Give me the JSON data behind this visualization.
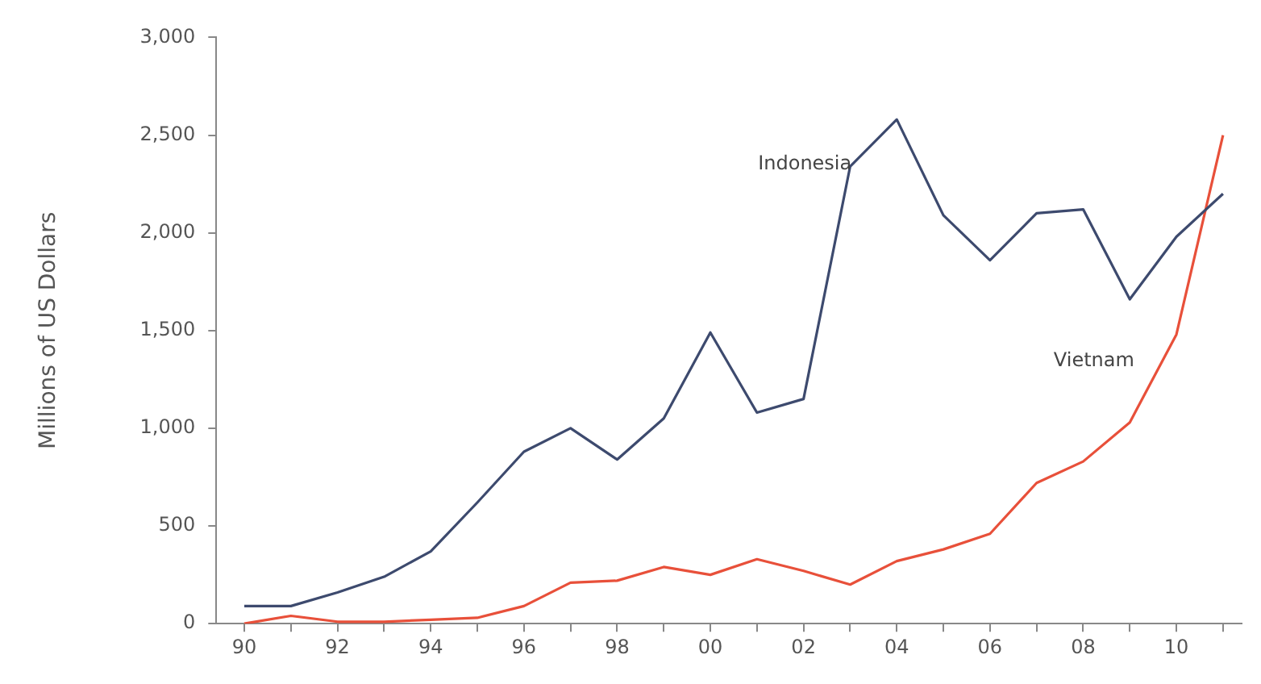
{
  "chart_data": {
    "type": "line",
    "ylabel": "Millions of US Dollars",
    "x": [
      1990,
      1991,
      1992,
      1993,
      1994,
      1995,
      1996,
      1997,
      1998,
      1999,
      2000,
      2001,
      2002,
      2003,
      2004,
      2005,
      2006,
      2007,
      2008,
      2009,
      2010,
      2011
    ],
    "series": [
      {
        "name": "Indonesia",
        "color": "#3d4a6e",
        "values": [
          90,
          90,
          160,
          240,
          370,
          620,
          880,
          1000,
          840,
          1050,
          1490,
          1080,
          1150,
          2340,
          2580,
          2090,
          1860,
          2100,
          2120,
          1660,
          1980,
          2200
        ]
      },
      {
        "name": "Vietnam",
        "color": "#e8503a",
        "values": [
          0,
          40,
          10,
          10,
          20,
          30,
          90,
          210,
          220,
          290,
          250,
          330,
          270,
          200,
          320,
          380,
          460,
          720,
          830,
          1030,
          1480,
          2500
        ]
      }
    ],
    "xlim": [
      1989.4,
      2011.4
    ],
    "xticks": [
      {
        "value": 1990,
        "label": "90"
      },
      {
        "value": 1991,
        "label": null
      },
      {
        "value": 1992,
        "label": "92"
      },
      {
        "value": 1993,
        "label": null
      },
      {
        "value": 1994,
        "label": "94"
      },
      {
        "value": 1995,
        "label": null
      },
      {
        "value": 1996,
        "label": "96"
      },
      {
        "value": 1997,
        "label": null
      },
      {
        "value": 1998,
        "label": "98"
      },
      {
        "value": 1999,
        "label": null
      },
      {
        "value": 2000,
        "label": "00"
      },
      {
        "value": 2001,
        "label": null
      },
      {
        "value": 2002,
        "label": "02"
      },
      {
        "value": 2003,
        "label": null
      },
      {
        "value": 2004,
        "label": "04"
      },
      {
        "value": 2005,
        "label": null
      },
      {
        "value": 2006,
        "label": "06"
      },
      {
        "value": 2007,
        "label": null
      },
      {
        "value": 2008,
        "label": "08"
      },
      {
        "value": 2009,
        "label": null
      },
      {
        "value": 2010,
        "label": "10"
      },
      {
        "value": 2011,
        "label": null
      }
    ],
    "ylim": [
      0,
      3000
    ],
    "yticks": [
      {
        "value": 0,
        "label": "0"
      },
      {
        "value": 500,
        "label": "500"
      },
      {
        "value": 1000,
        "label": "1,000"
      },
      {
        "value": 1500,
        "label": "1,500"
      },
      {
        "value": 2000,
        "label": "2,000"
      },
      {
        "value": 2500,
        "label": "2,500"
      },
      {
        "value": 3000,
        "label": "3,000"
      }
    ],
    "grid": false,
    "legend": false,
    "marker": "none",
    "line_style": "solid"
  }
}
